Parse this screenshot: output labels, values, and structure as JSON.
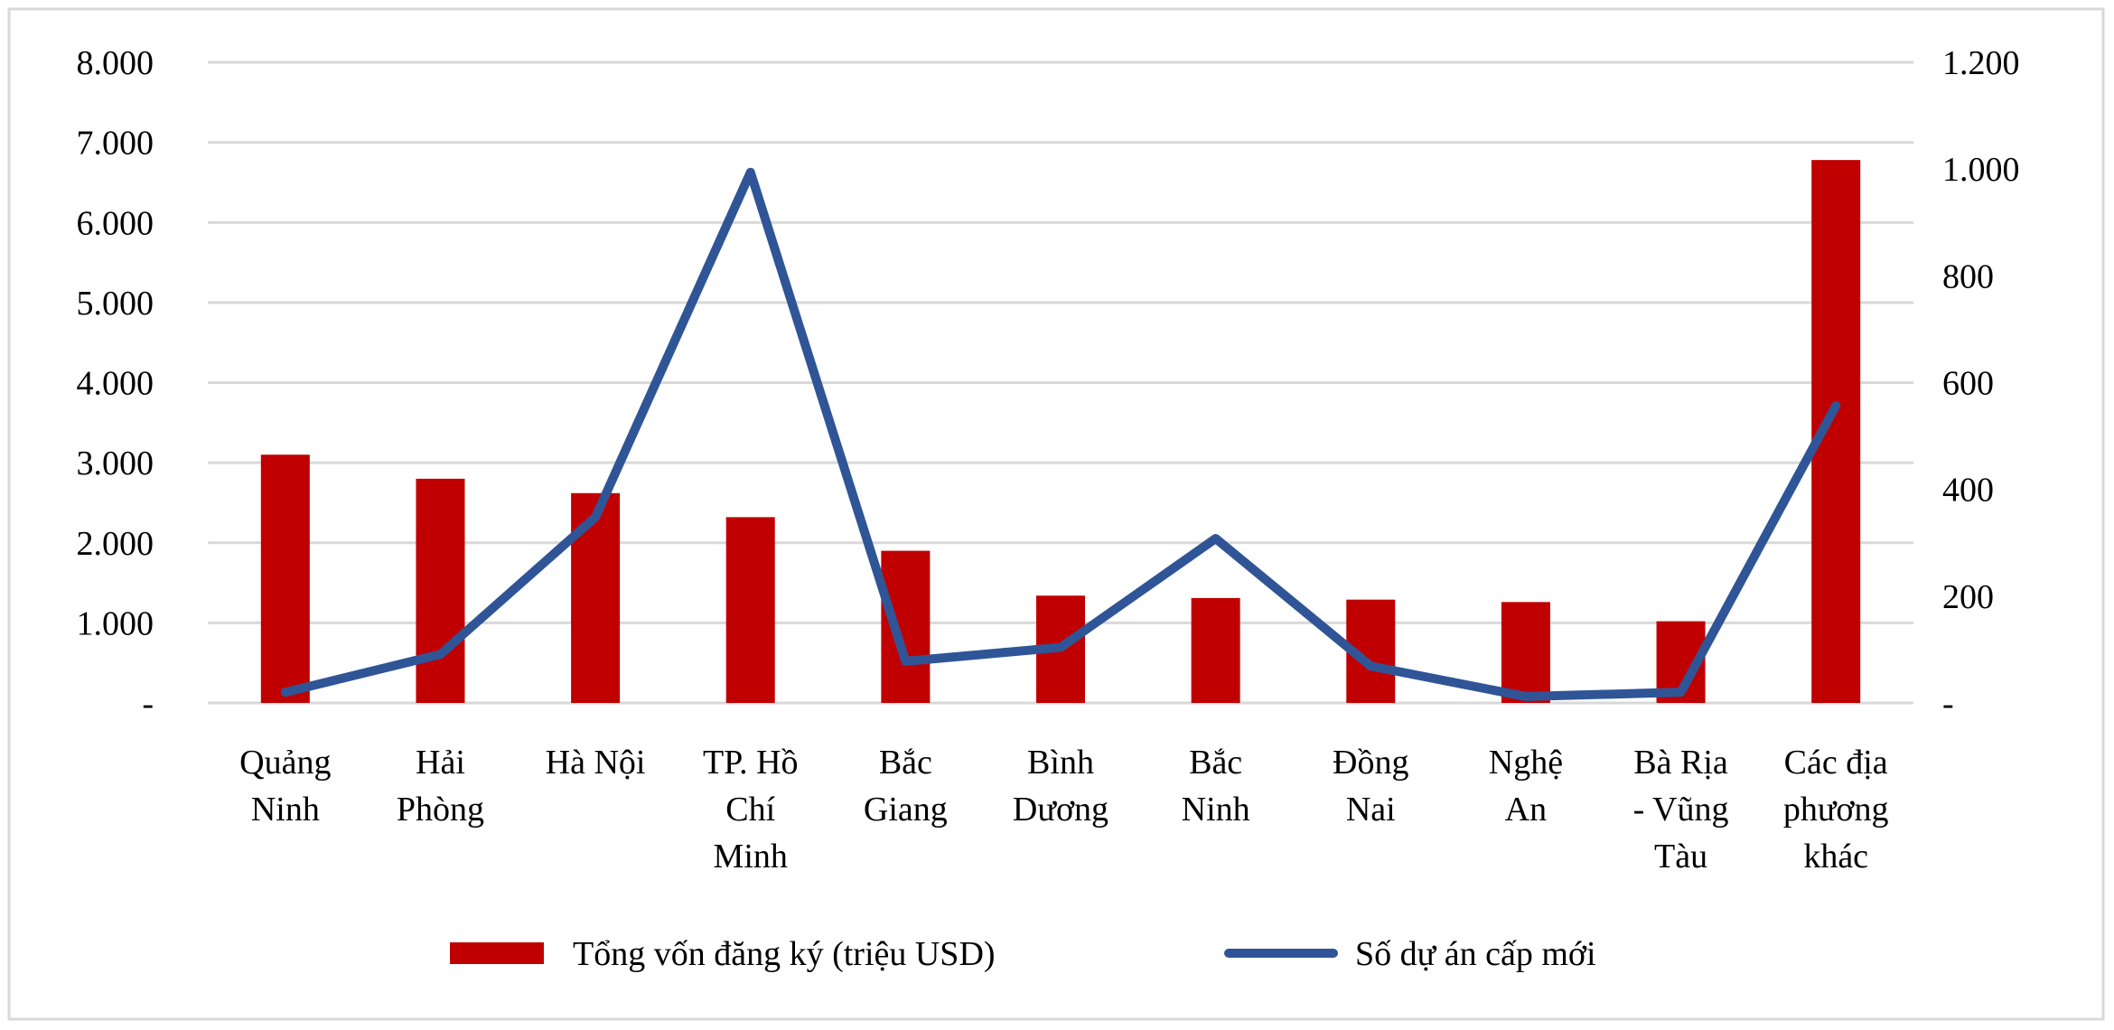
{
  "chart_data": {
    "type": "bar",
    "categories": [
      "Quảng Ninh",
      "Hải Phòng",
      "Hà Nội",
      "TP. Hồ Chí Minh",
      "Bắc Giang",
      "Bình Dương",
      "Bắc Ninh",
      "Đồng Nai",
      "Nghệ An",
      "Bà Rịa - Vũng Tàu",
      "Các địa phương khác"
    ],
    "category_label_lines": [
      [
        "Quảng",
        "Ninh"
      ],
      [
        "Hải",
        "Phòng"
      ],
      [
        "Hà Nội"
      ],
      [
        "TP. Hồ",
        "Chí",
        "Minh"
      ],
      [
        "Bắc",
        "Giang"
      ],
      [
        "Bình",
        "Dương"
      ],
      [
        "Bắc",
        "Ninh"
      ],
      [
        "Đồng",
        "Nai"
      ],
      [
        "Nghệ",
        "An"
      ],
      [
        "Bà Rịa",
        "- Vũng",
        "Tàu"
      ],
      [
        "Các địa",
        "phương",
        "khác"
      ]
    ],
    "series": [
      {
        "name": "Tổng vốn đăng ký (triệu USD)",
        "type": "bar",
        "axis": "left",
        "color": "#C00000",
        "values": [
          3100,
          2800,
          2620,
          2320,
          1900,
          1340,
          1310,
          1290,
          1260,
          1020,
          6780
        ]
      },
      {
        "name": "Số dự án cấp mới",
        "type": "line",
        "axis": "right",
        "color": "#2F5597",
        "values": [
          20,
          91,
          348,
          994,
          78,
          104,
          308,
          69,
          12,
          20,
          557
        ]
      }
    ],
    "left_axis": {
      "ylim": [
        0,
        8000
      ],
      "ticks": [
        0,
        1000,
        2000,
        3000,
        4000,
        5000,
        6000,
        7000,
        8000
      ],
      "tick_labels": [
        "-",
        "1.000",
        "2.000",
        "3.000",
        "4.000",
        "5.000",
        "6.000",
        "7.000",
        "8.000"
      ]
    },
    "right_axis": {
      "ylim": [
        0,
        1200
      ],
      "ticks": [
        0,
        200,
        400,
        600,
        800,
        1000,
        1200
      ],
      "tick_labels": [
        "-",
        "200",
        "400",
        "600",
        "800",
        "1.000",
        "1.200"
      ]
    },
    "grid": true,
    "grid_color": "#D9D9D9",
    "legend_position": "bottom",
    "title": "",
    "xlabel": "",
    "ylabel": ""
  }
}
